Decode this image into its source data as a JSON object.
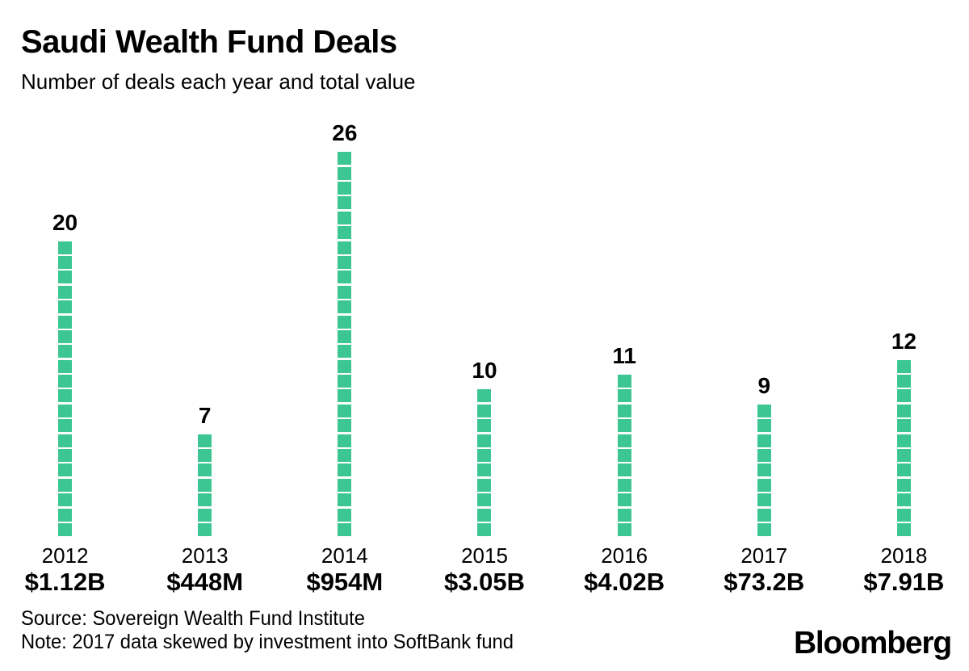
{
  "header": {
    "title": "Saudi Wealth Fund Deals",
    "subtitle": "Number of deals each year and total value"
  },
  "chart_data": {
    "type": "bar",
    "subtype": "unit-stacked-squares",
    "title": "Saudi Wealth Fund Deals",
    "subtitle": "Number of deals each year and total value",
    "categories": [
      "2012",
      "2013",
      "2014",
      "2015",
      "2016",
      "2017",
      "2018"
    ],
    "values": [
      20,
      7,
      26,
      10,
      11,
      9,
      12
    ],
    "totals": [
      "$1.12B",
      "$448M",
      "$954M",
      "$3.05B",
      "$4.02B",
      "$73.2B",
      "$7.91B"
    ],
    "xlabel": "",
    "ylabel": "Number of deals",
    "ylim": [
      0,
      26
    ],
    "grid": false,
    "legend_position": "none",
    "unit_color": "#3CC693"
  },
  "footer": {
    "source": "Source: Sovereign Wealth Fund Institute",
    "note": "Note: 2017 data skewed by investment into SoftBank fund",
    "brand": "Bloomberg"
  },
  "colors": {
    "bar_green": "#3CC693",
    "text": "#000000",
    "background": "#FFFFFF"
  }
}
